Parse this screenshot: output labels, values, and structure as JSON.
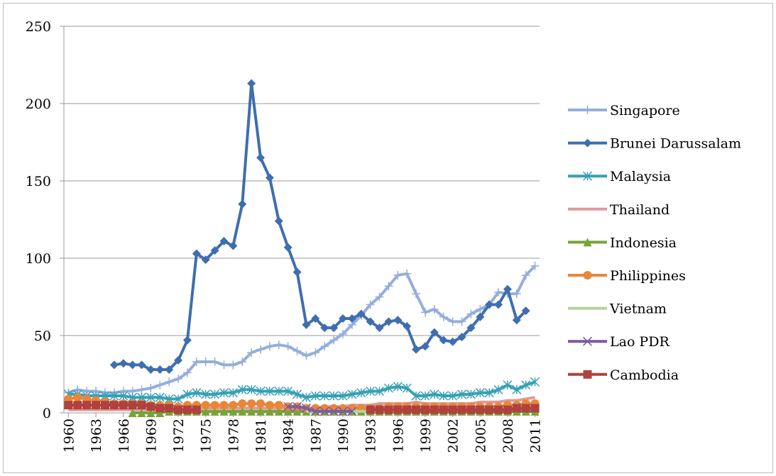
{
  "chart_data": {
    "type": "line",
    "categories": [
      "1960",
      null,
      null,
      "1963",
      null,
      null,
      "1966",
      null,
      null,
      "1969",
      null,
      null,
      "1972",
      null,
      null,
      "1975",
      null,
      null,
      "1978",
      null,
      null,
      "1981",
      null,
      null,
      "1984",
      null,
      null,
      "1987",
      null,
      null,
      "1990",
      null,
      null,
      "1993",
      null,
      null,
      "1996",
      null,
      null,
      "1999",
      null,
      null,
      "2002",
      null,
      null,
      "2005",
      null,
      null,
      "2008",
      null,
      null,
      "2011"
    ],
    "ylim": [
      0,
      250
    ],
    "yticks": [
      0,
      50,
      100,
      150,
      200,
      250
    ],
    "grid": true,
    "legend": "right",
    "series": [
      {
        "name": "Singapore",
        "color": "#95aedb",
        "marker": "plus",
        "values": [
          13,
          15,
          14,
          14,
          13,
          13,
          14,
          14,
          15,
          16,
          18,
          20,
          22,
          26,
          33,
          33,
          33,
          31,
          31,
          33,
          39,
          41,
          43,
          44,
          43,
          40,
          37,
          39,
          43,
          47,
          51,
          57,
          63,
          70,
          75,
          82,
          89,
          90,
          77,
          65,
          67,
          62,
          59,
          59,
          64,
          67,
          70,
          78,
          77,
          77,
          89,
          95
        ]
      },
      {
        "name": "Brunei Darussalam",
        "color": "#3f6eb0",
        "marker": "diamond",
        "values": [
          null,
          null,
          null,
          null,
          null,
          31,
          32,
          31,
          31,
          28,
          28,
          28,
          34,
          47,
          103,
          99,
          105,
          111,
          108,
          135,
          213,
          165,
          152,
          124,
          107,
          91,
          57,
          61,
          55,
          55,
          61,
          61,
          64,
          59,
          55,
          59,
          60,
          56,
          41,
          43,
          52,
          47,
          46,
          49,
          55,
          62,
          70,
          70,
          80,
          60,
          66,
          null
        ]
      },
      {
        "name": "Malaysia",
        "color": "#37a0b5",
        "marker": "star",
        "values": [
          12,
          12,
          11,
          11,
          11,
          11,
          11,
          10,
          10,
          10,
          10,
          9,
          9,
          12,
          13,
          12,
          12,
          13,
          13,
          15,
          15,
          14,
          14,
          14,
          14,
          12,
          10,
          11,
          11,
          11,
          11,
          12,
          13,
          14,
          14,
          16,
          17,
          16,
          11,
          11,
          12,
          11,
          11,
          12,
          12,
          13,
          13,
          15,
          18,
          15,
          18,
          20
        ]
      },
      {
        "name": "Thailand",
        "color": "#dd9a98",
        "marker": "none",
        "values": [
          2,
          2,
          2,
          2,
          2,
          2,
          2,
          2,
          2,
          2,
          2,
          2,
          2,
          3,
          3,
          3,
          3,
          3,
          3,
          3,
          3,
          3,
          3,
          3,
          3,
          3,
          3,
          3,
          4,
          4,
          4,
          5,
          5,
          5,
          6,
          6,
          6,
          6,
          7,
          6,
          6,
          6,
          6,
          6,
          6,
          7,
          7,
          7,
          8,
          8,
          9,
          10
        ]
      },
      {
        "name": "Indonesia",
        "color": "#77a338",
        "marker": "triangle",
        "values": [
          null,
          null,
          null,
          null,
          null,
          null,
          null,
          0,
          0,
          0,
          0,
          1,
          1,
          1,
          1,
          1,
          1,
          1,
          1,
          1,
          1,
          1,
          1,
          1,
          1,
          1,
          1,
          1,
          1,
          1,
          1,
          1,
          1,
          1,
          1,
          1,
          1,
          1,
          1,
          1,
          1,
          1,
          1,
          1,
          1,
          1,
          1,
          1,
          1,
          1,
          1,
          1
        ]
      },
      {
        "name": "Philippines",
        "color": "#e8873a",
        "marker": "circle",
        "values": [
          9,
          10,
          9,
          8,
          7,
          6,
          6,
          6,
          6,
          5,
          5,
          5,
          4,
          5,
          5,
          5,
          5,
          5,
          5,
          6,
          6,
          6,
          5,
          5,
          4,
          4,
          3,
          3,
          3,
          3,
          3,
          3,
          3,
          3,
          3,
          4,
          4,
          4,
          4,
          4,
          4,
          4,
          4,
          4,
          4,
          4,
          4,
          4,
          5,
          5,
          6,
          6
        ]
      },
      {
        "name": "Vietnam",
        "color": "#b5d49a",
        "marker": "none",
        "values": [
          null,
          null,
          null,
          null,
          null,
          null,
          null,
          null,
          null,
          null,
          null,
          null,
          null,
          null,
          null,
          null,
          null,
          null,
          null,
          null,
          null,
          null,
          null,
          null,
          null,
          null,
          1,
          1,
          1,
          1,
          1,
          1,
          1,
          1,
          1,
          1,
          2,
          2,
          2,
          2,
          2,
          2,
          2,
          2,
          2,
          3,
          3,
          3,
          3,
          4,
          4,
          4
        ]
      },
      {
        "name": "Lao PDR",
        "color": "#7d5aa0",
        "marker": "x",
        "values": [
          null,
          null,
          null,
          null,
          null,
          null,
          null,
          null,
          null,
          null,
          null,
          null,
          null,
          null,
          null,
          null,
          null,
          null,
          null,
          null,
          null,
          null,
          null,
          null,
          4,
          4,
          3,
          1,
          1,
          1,
          1,
          1,
          null,
          null,
          null,
          null,
          null,
          null,
          null,
          null,
          null,
          null,
          null,
          null,
          null,
          null,
          null,
          null,
          null,
          null,
          null,
          null
        ]
      },
      {
        "name": "Cambodia",
        "color": "#b0413e",
        "marker": "square",
        "values": [
          5,
          5,
          5,
          5,
          5,
          5,
          5,
          5,
          5,
          4,
          3,
          3,
          2,
          2,
          2,
          null,
          null,
          null,
          null,
          null,
          null,
          null,
          null,
          null,
          null,
          null,
          null,
          null,
          null,
          null,
          null,
          null,
          null,
          2,
          2,
          2,
          2,
          2,
          2,
          2,
          2,
          2,
          2,
          2,
          2,
          2,
          2,
          2,
          2,
          3,
          3,
          3
        ]
      }
    ]
  }
}
